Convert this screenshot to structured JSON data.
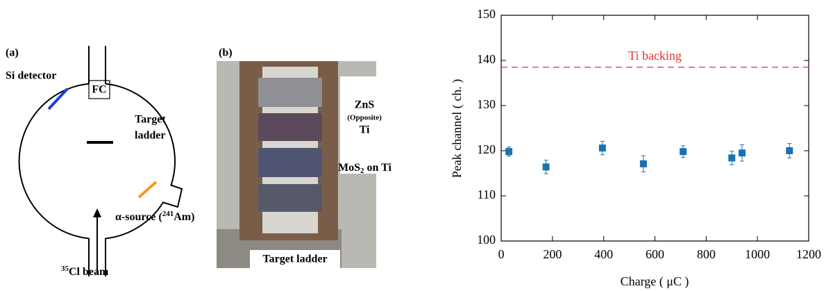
{
  "panel_a": {
    "label": "(a)",
    "si_detector": "Si detector",
    "fc": "FC",
    "target_line1": "Target",
    "target_line2": "ladder",
    "source_pre": "α-source (",
    "source_sup": "241",
    "source_post": "Am)",
    "beam_sup": "35",
    "beam_text": "Cl beam"
  },
  "panel_b": {
    "label": "(b)",
    "zns": "ZnS",
    "opposite": "(Opposite)",
    "ti": "Ti",
    "mos_pre": "MoS",
    "mos_sub": "2",
    "mos_post": " on Ti",
    "ladder": "Target ladder"
  },
  "chart_data": {
    "type": "scatter",
    "xlabel": "Charge ( μC )",
    "ylabel": "Peak channel ( ch. )",
    "x": [
      30,
      175,
      395,
      555,
      710,
      900,
      940,
      1125
    ],
    "values": [
      119.8,
      116.4,
      120.6,
      117.1,
      119.8,
      118.4,
      119.5,
      120.0
    ],
    "errors": [
      1.0,
      1.5,
      1.5,
      1.8,
      1.3,
      1.5,
      1.8,
      1.6
    ],
    "color": "#1a72b0",
    "xlim": [
      0,
      1200
    ],
    "xticks": [
      0,
      200,
      400,
      600,
      800,
      1000,
      1200
    ],
    "ylim": [
      100,
      150
    ],
    "yticks": [
      100,
      110,
      120,
      130,
      140,
      150
    ],
    "reference_lines": [
      {
        "value": 138.5,
        "label": "Ti backing",
        "color": "#e03030"
      }
    ]
  }
}
